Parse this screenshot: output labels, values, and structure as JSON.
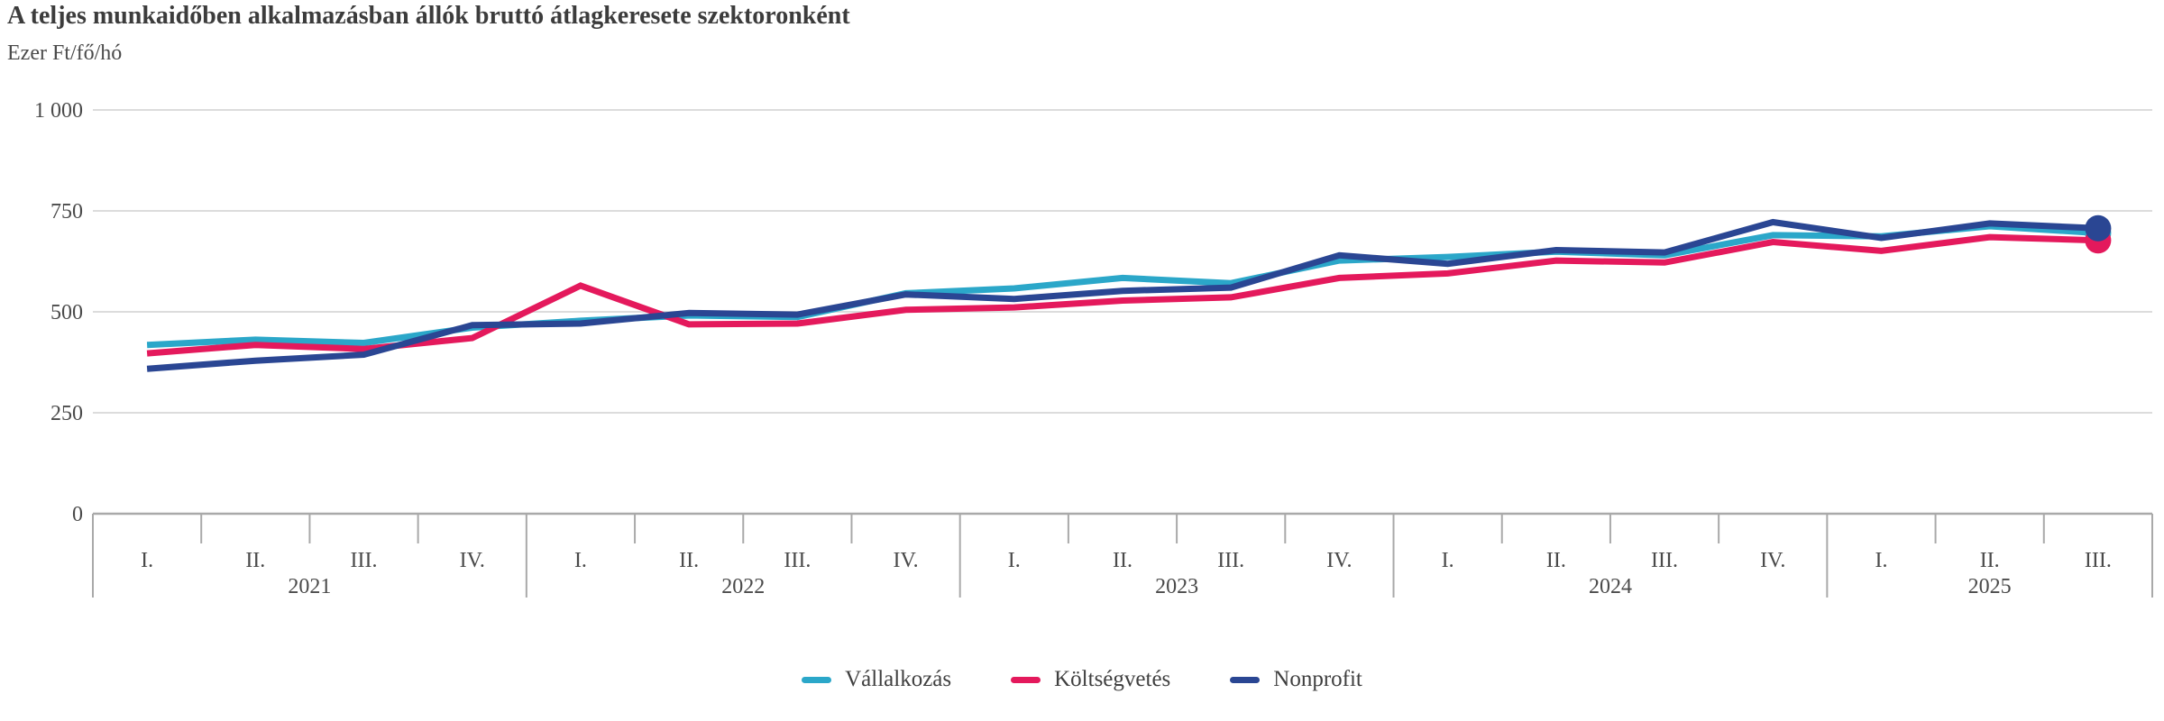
{
  "chart_data": {
    "type": "line",
    "title": "A teljes munkaidőben alkalmazásban állók bruttó átlagkeresete szektoronként",
    "unit": "Ezer Ft/fő/hó",
    "ylim": [
      0,
      1000
    ],
    "yticks": [
      0,
      250,
      500,
      750,
      1000
    ],
    "ytick_labels": [
      "0",
      "250",
      "500",
      "750",
      "1 000"
    ],
    "grid": true,
    "legend_position": "bottom",
    "years": [
      {
        "label": "2021",
        "quarters": [
          "I.",
          "II.",
          "III.",
          "IV."
        ]
      },
      {
        "label": "2022",
        "quarters": [
          "I.",
          "II.",
          "III.",
          "IV."
        ]
      },
      {
        "label": "2023",
        "quarters": [
          "I.",
          "II.",
          "III.",
          "IV."
        ]
      },
      {
        "label": "2024",
        "quarters": [
          "I.",
          "II.",
          "III.",
          "IV."
        ]
      },
      {
        "label": "2025",
        "quarters": [
          "I.",
          "II.",
          "III."
        ]
      }
    ],
    "series": [
      {
        "name": "Vállalkozás",
        "color": "#2BA7C9",
        "values": [
          418,
          431,
          423,
          461,
          478,
          491,
          487,
          546,
          558,
          584,
          571,
          627,
          636,
          649,
          640,
          690,
          687,
          712,
          695
        ]
      },
      {
        "name": "Költségvetés",
        "color": "#E4195C",
        "values": [
          397,
          418,
          408,
          435,
          565,
          469,
          471,
          505,
          511,
          528,
          536,
          584,
          595,
          627,
          622,
          673,
          651,
          685,
          677
        ]
      },
      {
        "name": "Nonprofit",
        "color": "#2A4693",
        "values": [
          359,
          379,
          394,
          467,
          471,
          497,
          493,
          543,
          532,
          552,
          560,
          640,
          619,
          653,
          647,
          722,
          683,
          719,
          707
        ]
      }
    ],
    "end_markers": true
  },
  "style_colors": {
    "gridline": "#DCDCDC",
    "axis": "#A9A9A9",
    "tick_text": "#4A4A4A",
    "title_text": "#3C3C3C"
  }
}
